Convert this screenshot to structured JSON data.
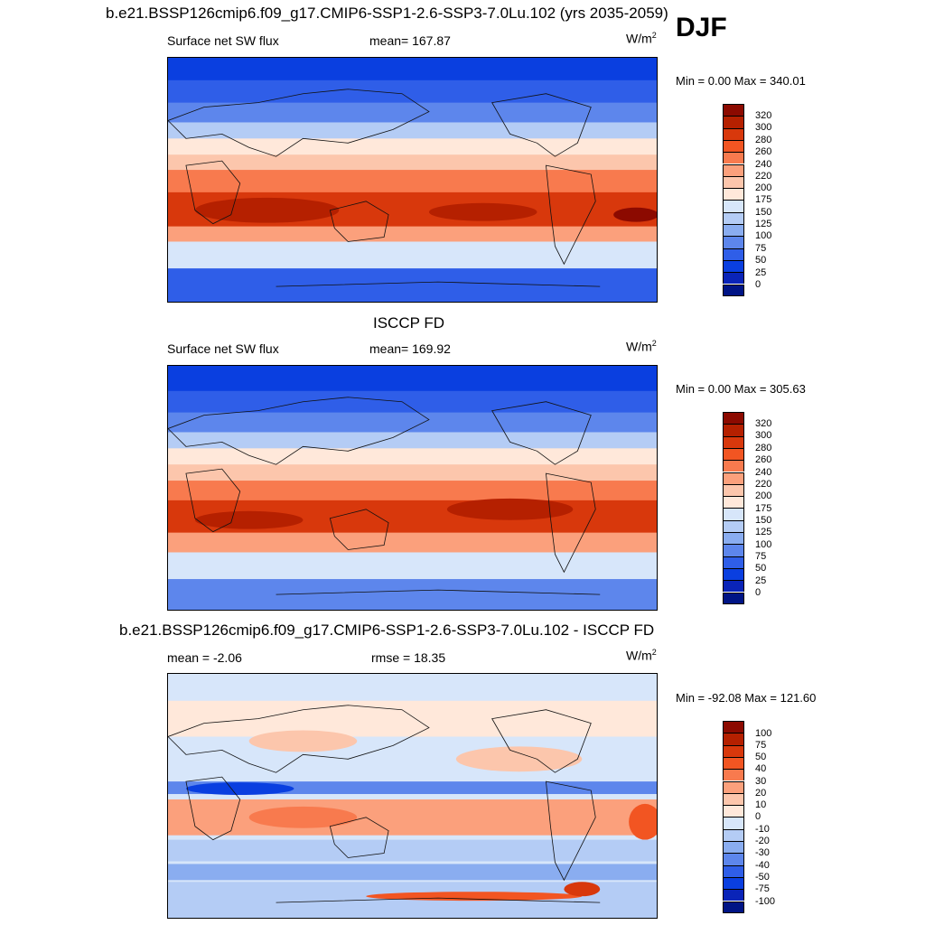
{
  "season": "DJF",
  "panels": [
    {
      "title": "b.e21.BSSP126cmip6.f09_g17.CMIP6-SSP1-2.6-SSP3-7.0Lu.102 (yrs 2035-2059)",
      "left_label": "Surface net SW flux",
      "center_label": "mean= 167.87",
      "units_base": "W/m",
      "units_exp": "2",
      "minmax": "Min =   0.00 Max = 340.01",
      "colorbar_labels": [
        "320",
        "300",
        "280",
        "260",
        "240",
        "220",
        "200",
        "175",
        "150",
        "125",
        "100",
        "75",
        "50",
        "25",
        "0"
      ]
    },
    {
      "title": "ISCCP FD",
      "left_label": "Surface net SW flux",
      "center_label": "mean= 169.92",
      "units_base": "W/m",
      "units_exp": "2",
      "minmax": "Min =   0.00 Max = 305.63",
      "colorbar_labels": [
        "320",
        "300",
        "280",
        "260",
        "240",
        "220",
        "200",
        "175",
        "150",
        "125",
        "100",
        "75",
        "50",
        "25",
        "0"
      ]
    },
    {
      "title": "b.e21.BSSP126cmip6.f09_g17.CMIP6-SSP1-2.6-SSP3-7.0Lu.102 - ISCCP FD",
      "left_label": "mean =  -2.06",
      "center_label": "rmse =  18.35",
      "units_base": "W/m",
      "units_exp": "2",
      "minmax": "Min = -92.08 Max = 121.60",
      "colorbar_labels": [
        "100",
        "75",
        "50",
        "40",
        "30",
        "20",
        "10",
        "0",
        "-10",
        "-20",
        "-30",
        "-40",
        "-50",
        "-75",
        "-100"
      ]
    }
  ],
  "colors": {
    "flux_scale": [
      "#8c0a00",
      "#b52000",
      "#d8380c",
      "#f25522",
      "#f87a4e",
      "#fba07c",
      "#fcc6ac",
      "#ffe8da",
      "#d7e6fa",
      "#b4ccf5",
      "#8aadf0",
      "#5d86ec",
      "#2f5ee8",
      "#0a3fe0",
      "#0a24b8",
      "#001485"
    ],
    "diff_scale": [
      "#8c0a00",
      "#b52000",
      "#d8380c",
      "#f25522",
      "#f87a4e",
      "#fba07c",
      "#fcc6ac",
      "#ffe8da",
      "#d7e6fa",
      "#b4ccf5",
      "#8aadf0",
      "#5d86ec",
      "#2f5ee8",
      "#0a3fe0",
      "#0a24b8",
      "#001485"
    ]
  }
}
